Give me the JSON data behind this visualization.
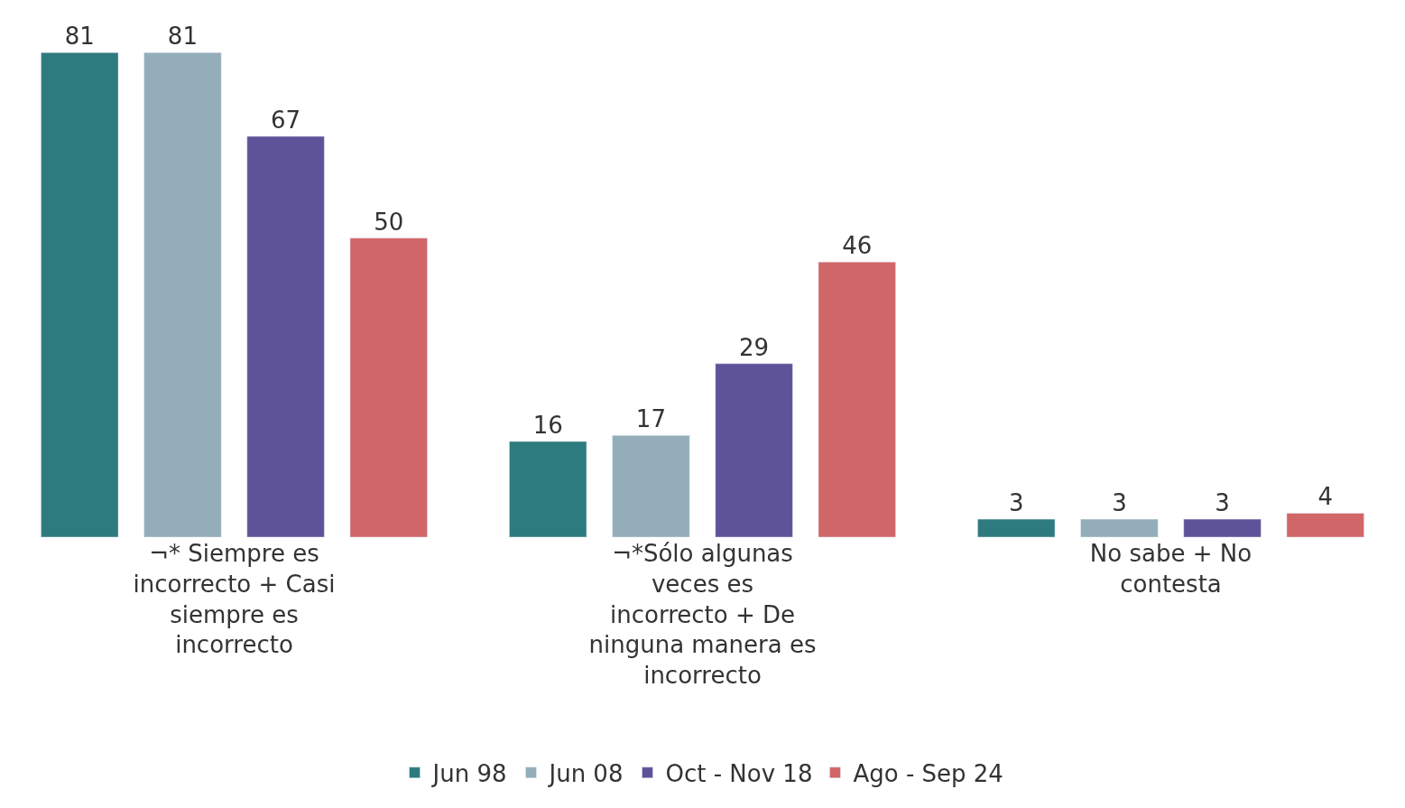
{
  "chart_data": {
    "type": "bar",
    "categories": [
      "¬* Siempre es incorrecto + Casi siempre es incorrecto",
      "¬*Sólo algunas veces es incorrecto + De ninguna manera es incorrecto",
      "No sabe + No contesta"
    ],
    "series": [
      {
        "name": "Jun 98",
        "color": "#2e7b7f",
        "values": [
          81,
          16,
          3
        ]
      },
      {
        "name": "Jun 08",
        "color": "#93aeb8",
        "values": [
          81,
          17,
          3
        ]
      },
      {
        "name": "Oct - Nov 18",
        "color": "#5e5398",
        "values": [
          67,
          29,
          3
        ]
      },
      {
        "name": "Ago - Sep 24",
        "color": "#d06668",
        "values": [
          50,
          46,
          4
        ]
      }
    ],
    "data_labels": true,
    "legend": "bottom"
  }
}
